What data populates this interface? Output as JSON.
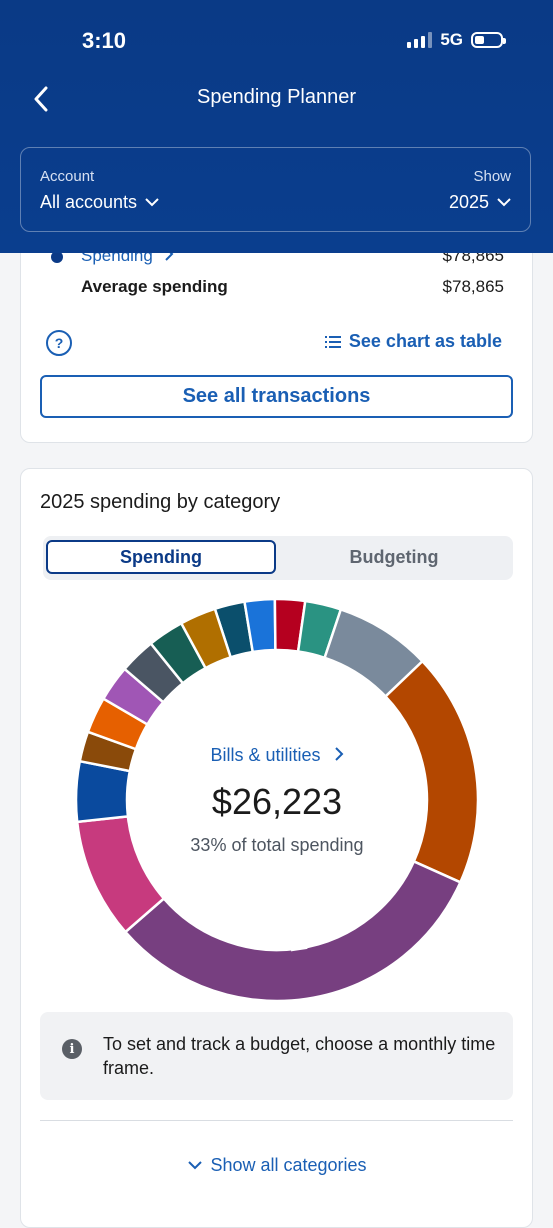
{
  "status_bar": {
    "time": "3:10",
    "network": "5G"
  },
  "nav": {
    "title": "Spending Planner",
    "back_icon": "chevron-left-icon"
  },
  "filters": {
    "account_label": "Account",
    "account_value": "All accounts",
    "show_label": "Show",
    "show_value": "2025"
  },
  "summary": {
    "spending_link": "Spending",
    "spending_value": "$78,865",
    "average_label": "Average spending",
    "average_value": "$78,865",
    "help_icon": "question-icon",
    "table_link": "See chart as table",
    "transactions_button": "See all transactions"
  },
  "category_card": {
    "title": "2025 spending by category",
    "tabs": [
      "Spending",
      "Budgeting"
    ],
    "selected_tab": "Spending",
    "center_link": "Bills & utilities",
    "center_amount": "$26,223",
    "center_percent": "33% of total spending",
    "info_text": "To set and track a budget, choose a monthly time frame.",
    "show_all": "Show all categories"
  },
  "chart_data": {
    "type": "pie",
    "highlighted": "Bills & utilities",
    "segments": [
      {
        "value": 2.5,
        "color": "#0b4f6c"
      },
      {
        "value": 2.5,
        "color": "#1a73d9"
      },
      {
        "value": 2.5,
        "color": "#b5001f"
      },
      {
        "value": 3.0,
        "color": "#2a9382"
      },
      {
        "value": 8.0,
        "color": "#7a8a9c"
      },
      {
        "value": 19.5,
        "color": "#b34700"
      },
      {
        "label": "Bills & utilities",
        "value": 33.0,
        "color": "#773f80"
      },
      {
        "value": 10.0,
        "color": "#c73a7e"
      },
      {
        "value": 5.0,
        "color": "#0a4a9e"
      },
      {
        "value": 2.5,
        "color": "#8a4a0a"
      },
      {
        "value": 3.0,
        "color": "#e66000"
      },
      {
        "value": 3.0,
        "color": "#a056b5"
      },
      {
        "value": 3.0,
        "color": "#4a5563"
      },
      {
        "value": 3.0,
        "color": "#175e54"
      },
      {
        "value": 3.0,
        "color": "#b06f00"
      }
    ]
  }
}
